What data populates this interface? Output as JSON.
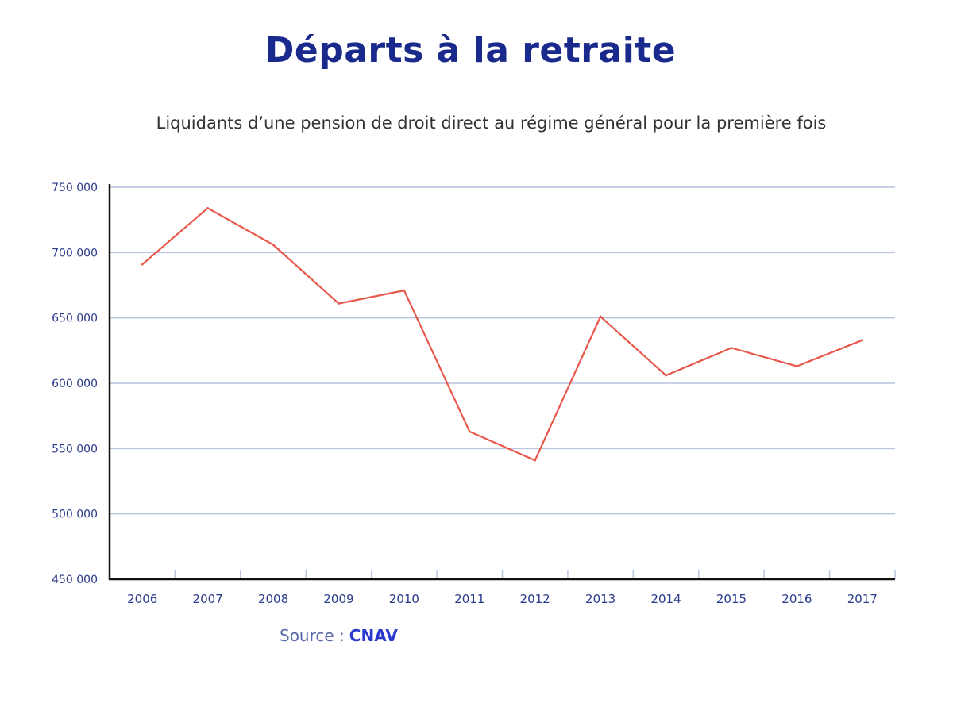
{
  "title": "Départs à la retraite",
  "subtitle": "Liquidants d’une pension de droit direct au régime général pour la première fois",
  "source": {
    "label": "Source :",
    "value": "CNAV"
  },
  "colors": {
    "title": "#1a2a8c",
    "line": "#e8574a",
    "grid": "#b8c4e0",
    "axis": "#111111",
    "ticks": "#2a3a8c"
  },
  "chart_data": {
    "type": "line",
    "title": "Départs à la retraite",
    "subtitle": "Liquidants d’une pension de droit direct au régime général pour la première fois",
    "x": [
      "2006",
      "2007",
      "2008",
      "2009",
      "2010",
      "2011",
      "2012",
      "2013",
      "2014",
      "2015",
      "2016",
      "2017"
    ],
    "series": [
      {
        "values": [
          691000,
          734000,
          706000,
          661000,
          671000,
          563000,
          541000,
          651000,
          606000,
          627000,
          613000,
          633000
        ]
      }
    ],
    "ylim": [
      450000,
      750000
    ],
    "yticks": [
      450000,
      500000,
      550000,
      600000,
      650000,
      700000,
      750000
    ],
    "ytick_labels": [
      "450 000",
      "500 000",
      "550 000",
      "600 000",
      "650 000",
      "700 000",
      "750 000"
    ],
    "grid": true,
    "legend": "none"
  }
}
